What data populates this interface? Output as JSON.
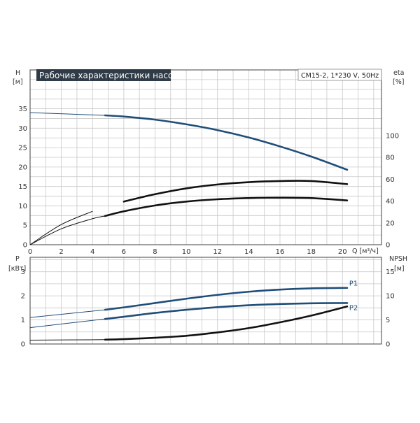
{
  "title_box": "Рабочие характеристики насоса",
  "model_label": "CM15-2, 1*230 V, 50Hz",
  "colors": {
    "pump_blue": "#1f4e79",
    "dark": "#111111",
    "title_bg": "#2f3b47",
    "grid": "#c8c8c8"
  },
  "chart_data": [
    {
      "type": "line",
      "name_panel": "top",
      "xlabel": "Q [м³/ч]",
      "ylabel": "H [м]",
      "ylabel_right": "eta [%]",
      "x_ticks": [
        0,
        2,
        4,
        6,
        8,
        10,
        12,
        14,
        16,
        18,
        20
      ],
      "y_ticks": [
        0,
        5,
        10,
        15,
        20,
        25,
        30,
        35
      ],
      "y_right_ticks": [
        0,
        20,
        40,
        60,
        80,
        100
      ],
      "xlim": [
        0,
        22.5
      ],
      "ylim": [
        0,
        45
      ],
      "y_right_lim": [
        0,
        160
      ],
      "grid": true,
      "series": [
        {
          "axis": "left",
          "color": "#1f4e79",
          "x": [
            0,
            4.8,
            6,
            8,
            10,
            12,
            14,
            16,
            18,
            20.3
          ],
          "y": [
            34,
            33.3,
            33,
            32.2,
            31,
            29.5,
            27.6,
            25.3,
            22.7,
            19.3
          ]
        },
        {
          "axis": "left",
          "color": "#111111",
          "x": [
            0,
            2,
            4,
            6,
            8,
            10,
            12,
            14,
            16,
            18,
            20.3
          ],
          "y": [
            0,
            5.2,
            8.6,
            11.1,
            13,
            14.5,
            15.5,
            16.1,
            16.4,
            16.4,
            15.6
          ]
        },
        {
          "axis": "left",
          "color": "#111111",
          "x": [
            0,
            2,
            4,
            4.8,
            6,
            8,
            10,
            12,
            14,
            16,
            18,
            20.3
          ],
          "y": [
            0,
            4.1,
            6.7,
            7.4,
            8.6,
            10.1,
            11.1,
            11.7,
            12,
            12.1,
            12,
            11.4
          ]
        }
      ]
    },
    {
      "type": "line",
      "name_panel": "bottom",
      "ylabel": "P [кВт]",
      "ylabel_right": "NPSH [м]",
      "y_ticks": [
        0,
        1,
        2,
        3
      ],
      "y_right_ticks": [
        0,
        5,
        10,
        15
      ],
      "xlim": [
        0,
        22.5
      ],
      "ylim": [
        0,
        3.6
      ],
      "y_right_lim": [
        0,
        18
      ],
      "grid": true,
      "series": [
        {
          "name": "P1",
          "axis": "left",
          "color": "#1f4e79",
          "x": [
            0,
            4.8,
            6,
            8,
            10,
            12,
            14,
            16,
            18,
            20.3
          ],
          "y": [
            1.1,
            1.42,
            1.52,
            1.7,
            1.88,
            2.04,
            2.17,
            2.26,
            2.31,
            2.33
          ]
        },
        {
          "name": "P2",
          "axis": "left",
          "color": "#1f4e79",
          "x": [
            0,
            4.8,
            6,
            8,
            10,
            12,
            14,
            16,
            18,
            20.3
          ],
          "y": [
            0.68,
            1.04,
            1.13,
            1.29,
            1.42,
            1.53,
            1.61,
            1.66,
            1.69,
            1.7
          ]
        },
        {
          "axis": "right",
          "color": "#111111",
          "x": [
            0,
            4.8,
            6,
            8,
            10,
            12,
            14,
            16,
            18,
            20.3
          ],
          "y": [
            0.8,
            0.9,
            1.0,
            1.3,
            1.7,
            2.4,
            3.3,
            4.5,
            5.9,
            7.8
          ]
        }
      ]
    }
  ]
}
